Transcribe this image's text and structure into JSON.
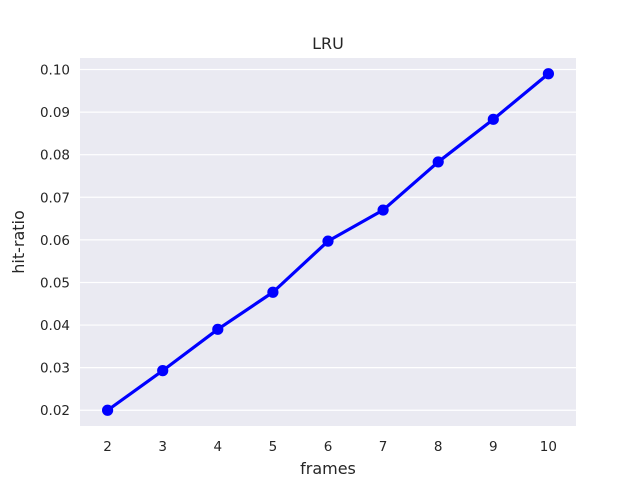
{
  "chart_data": {
    "type": "line",
    "title": "LRU",
    "xlabel": "frames",
    "ylabel": "hit-ratio",
    "categories": [
      "2",
      "3",
      "4",
      "5",
      "6",
      "7",
      "8",
      "9",
      "10"
    ],
    "series": [
      {
        "values": [
          0.02,
          0.0293,
          0.039,
          0.0477,
          0.0597,
          0.067,
          0.0783,
          0.0883,
          0.099
        ]
      }
    ],
    "y_ticks": [
      "0.02",
      "0.03",
      "0.04",
      "0.05",
      "0.06",
      "0.07",
      "0.08",
      "0.09",
      "0.10"
    ],
    "ylim": [
      0.0163,
      0.1027
    ],
    "grid": true,
    "colors": {
      "background": "#EAEAF2",
      "grid": "#FFFFFF",
      "line": "#0000FF"
    }
  }
}
